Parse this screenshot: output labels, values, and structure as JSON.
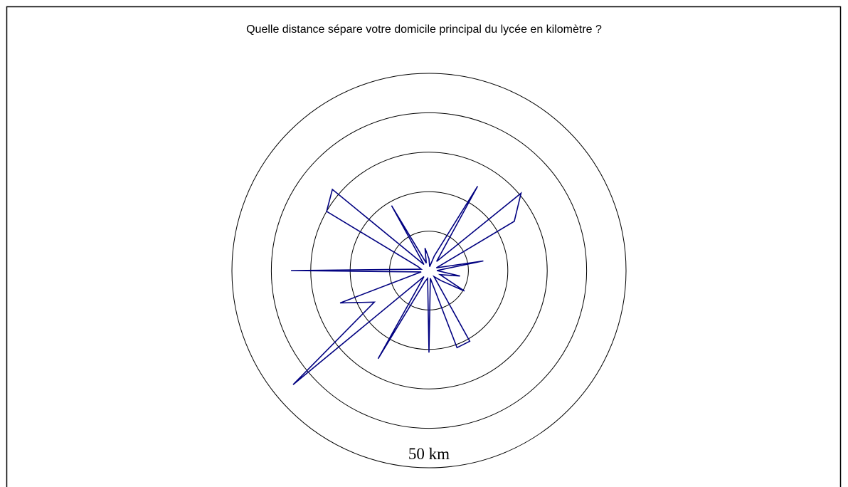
{
  "chart_data": {
    "type": "radar",
    "title": "Quelle distance sépare  votre domicile principal  du lycée en kilomètre ?",
    "values": [
      3,
      1,
      4,
      24.7,
      3,
      30.5,
      25,
      2,
      14,
      2,
      8,
      3,
      10.4,
      4,
      2,
      20.7,
      20.8,
      2,
      20.8,
      2,
      3,
      25.8,
      2,
      45,
      16,
      24,
      2,
      35,
      2,
      3,
      30,
      32,
      2,
      19,
      2,
      5.8
    ],
    "color": "#000080",
    "rlim": [
      0,
      50
    ],
    "rticks": [
      10,
      20,
      30,
      40,
      50
    ],
    "scale_label": {
      "value": 50,
      "label": "50 km"
    }
  }
}
